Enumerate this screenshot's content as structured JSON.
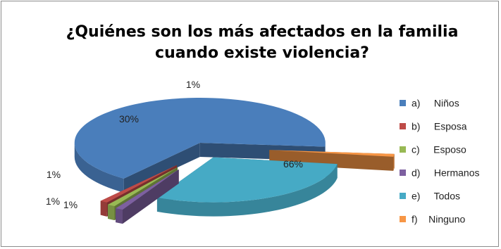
{
  "chart_data": {
    "type": "pie",
    "title_lines": [
      "¿Quiénes son los más afectados en la familia",
      "cuando existe violencia?"
    ],
    "categories": [
      "a)     Niños",
      "b)     Esposa",
      "c)     Esposo",
      "d)     Hermanos",
      "e)     Todos",
      "f)    Ninguno"
    ],
    "values": [
      66,
      1,
      1,
      1,
      30,
      1
    ],
    "data_labels": [
      "66%",
      "1%",
      "1%",
      "1%",
      "30%",
      "1%"
    ],
    "colors": [
      "#4a7ebb",
      "#be4b48",
      "#98b954",
      "#7d60a0",
      "#46aac5",
      "#f79646"
    ],
    "three_d": true,
    "exploded": true,
    "legend_position": "right"
  }
}
